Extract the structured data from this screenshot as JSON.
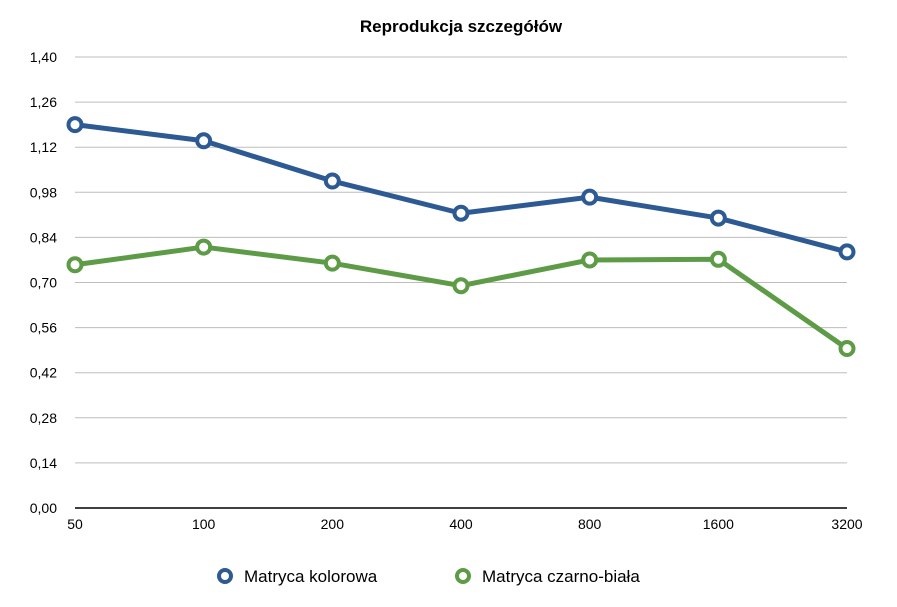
{
  "chart_data": {
    "type": "line",
    "title": "Reprodukcja szczegółów",
    "categories": [
      "50",
      "100",
      "200",
      "400",
      "800",
      "1600",
      "3200"
    ],
    "ylim": [
      0,
      1.4
    ],
    "yticks": [
      "0,00",
      "0,14",
      "0,28",
      "0,42",
      "0,56",
      "0,70",
      "0,84",
      "0,98",
      "1,12",
      "1,26",
      "1,40"
    ],
    "grid": true,
    "legend_position": "bottom",
    "series": [
      {
        "name": "Matryca kolorowa",
        "color": "#2e5a93",
        "values": [
          1.19,
          1.14,
          1.015,
          0.915,
          0.965,
          0.9,
          0.795
        ]
      },
      {
        "name": "Matryca czarno-biała",
        "color": "#5d9b46",
        "values": [
          0.755,
          0.81,
          0.76,
          0.69,
          0.77,
          0.772,
          0.495
        ]
      }
    ]
  }
}
